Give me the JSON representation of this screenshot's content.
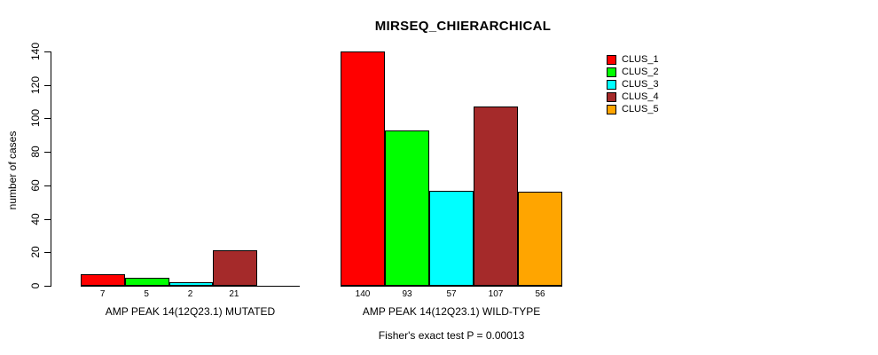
{
  "chart_data": {
    "type": "bar",
    "title": "MIRSEQ_CHIERARCHICAL",
    "ylabel": "number of cases",
    "ylim": [
      0,
      140
    ],
    "y_ticks": [
      0,
      20,
      40,
      60,
      80,
      100,
      120,
      140
    ],
    "grid": false,
    "legend_position": "top-right-outside",
    "series": [
      {
        "name": "CLUS_1",
        "color": "#FF0000"
      },
      {
        "name": "CLUS_2",
        "color": "#00FF00"
      },
      {
        "name": "CLUS_3",
        "color": "#00FFFF"
      },
      {
        "name": "CLUS_4",
        "color": "#A52A2A"
      },
      {
        "name": "CLUS_5",
        "color": "#FFA500"
      }
    ],
    "groups": [
      {
        "label": "AMP PEAK 14(12Q23.1) MUTATED",
        "values": [
          7,
          5,
          2,
          21,
          0
        ],
        "value_labels": [
          "7",
          "5",
          "2",
          "21",
          ""
        ]
      },
      {
        "label": "AMP PEAK 14(12Q23.1) WILD-TYPE",
        "values": [
          140,
          93,
          57,
          107,
          56
        ],
        "value_labels": [
          "140",
          "93",
          "57",
          "107",
          "56"
        ]
      }
    ],
    "annotation": "Fisher's exact test P = 0.00013"
  }
}
